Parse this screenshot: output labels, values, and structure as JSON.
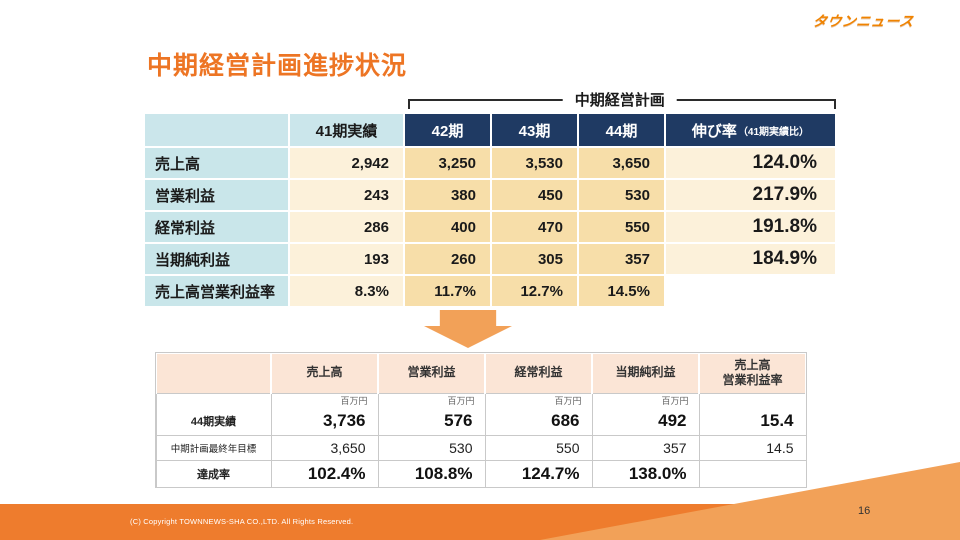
{
  "logo": {
    "text": "タウンニュース"
  },
  "title": "中期経営計画進捗状況",
  "bracket": {
    "label": "中期経営計画"
  },
  "table1": {
    "header": [
      "",
      "41期実績",
      "42期",
      "43期",
      "44期"
    ],
    "growth_header": {
      "main": "伸び率",
      "sub": "（41期実績比）"
    },
    "rows": [
      [
        "売上高",
        "2,942",
        "3,250",
        "3,530",
        "3,650",
        "124.0%"
      ],
      [
        "営業利益",
        "243",
        "380",
        "450",
        "530",
        "217.9%"
      ],
      [
        "経常利益",
        "286",
        "400",
        "470",
        "550",
        "191.8%"
      ],
      [
        "当期純利益",
        "193",
        "260",
        "305",
        "357",
        "184.9%"
      ],
      [
        "売上高営業利益率",
        "8.3%",
        "11.7%",
        "12.7%",
        "14.5%",
        ""
      ]
    ]
  },
  "table2": {
    "header": [
      "",
      "売上高",
      "営業利益",
      "経常利益",
      "当期純利益",
      "売上高\n営業利益率"
    ],
    "units": [
      "百万円",
      "百万円",
      "百万円",
      "百万円",
      ""
    ],
    "rows": [
      {
        "label": "44期実績",
        "values": [
          "3,736",
          "576",
          "686",
          "492",
          "15.4"
        ]
      },
      {
        "label": "中期計画最終年目標",
        "values": [
          "3,650",
          "530",
          "550",
          "357",
          "14.5"
        ]
      },
      {
        "label": "達成率",
        "values": [
          "102.4%",
          "108.8%",
          "124.7%",
          "138.0%",
          ""
        ]
      }
    ]
  },
  "footer": {
    "copyright": "(C) Copyright TOWNNEWS-SHA CO.,LTD. All Rights Reserved.",
    "page_number": "16"
  },
  "colors": {
    "accent_orange": "#ED7524",
    "navy": "#1F3A63",
    "light_cyan": "#CBE6EB",
    "cream": "#FCF1DA",
    "tan": "#F7DEA9",
    "peach": "#FBE5D6",
    "footer_light": "#F2A158"
  }
}
